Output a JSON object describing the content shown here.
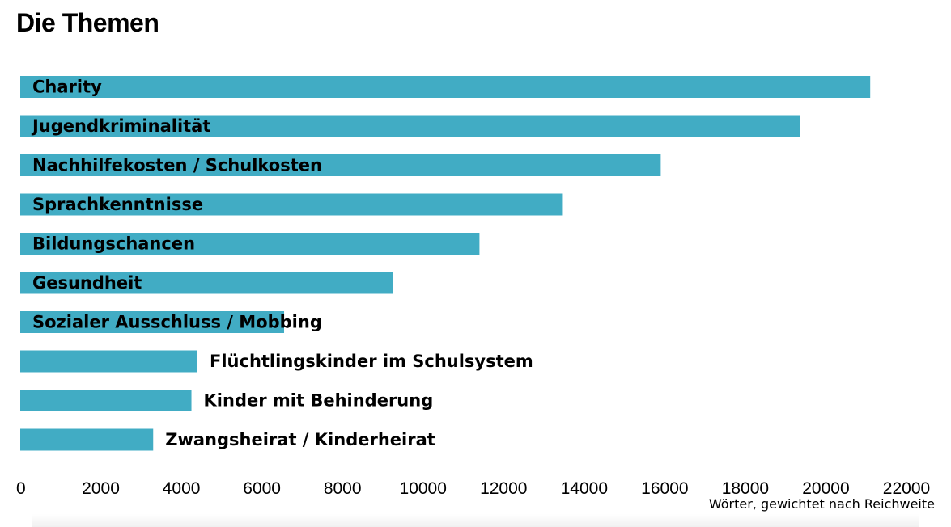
{
  "chart_data": {
    "type": "bar",
    "orientation": "horizontal",
    "title": "Die Themen",
    "xlabel": "Wörter, gewichtet nach Reichweite",
    "ylabel": "",
    "xlim": [
      0,
      22000
    ],
    "xticks": [
      "0",
      "2000",
      "4000",
      "6000",
      "8000",
      "10000",
      "12000",
      "14000",
      "16000",
      "18000",
      "20000",
      "22000"
    ],
    "grid": false,
    "bar_color": "#41acc4",
    "categories": [
      "Charity",
      "Jugendkriminalität",
      "Nachhilfekosten / Schulkosten",
      "Sprachkenntnisse",
      "Bildungschancen",
      "Gesundheit",
      "Sozialer Ausschluss / Mobbing",
      "Flüchtlingskinder im Schulsystem",
      "Kinder mit Behinderung",
      "Zwangsheirat / Kinderheirat"
    ],
    "values": [
      21100,
      19350,
      15900,
      13450,
      11400,
      9250,
      6550,
      4400,
      4250,
      3300
    ]
  }
}
